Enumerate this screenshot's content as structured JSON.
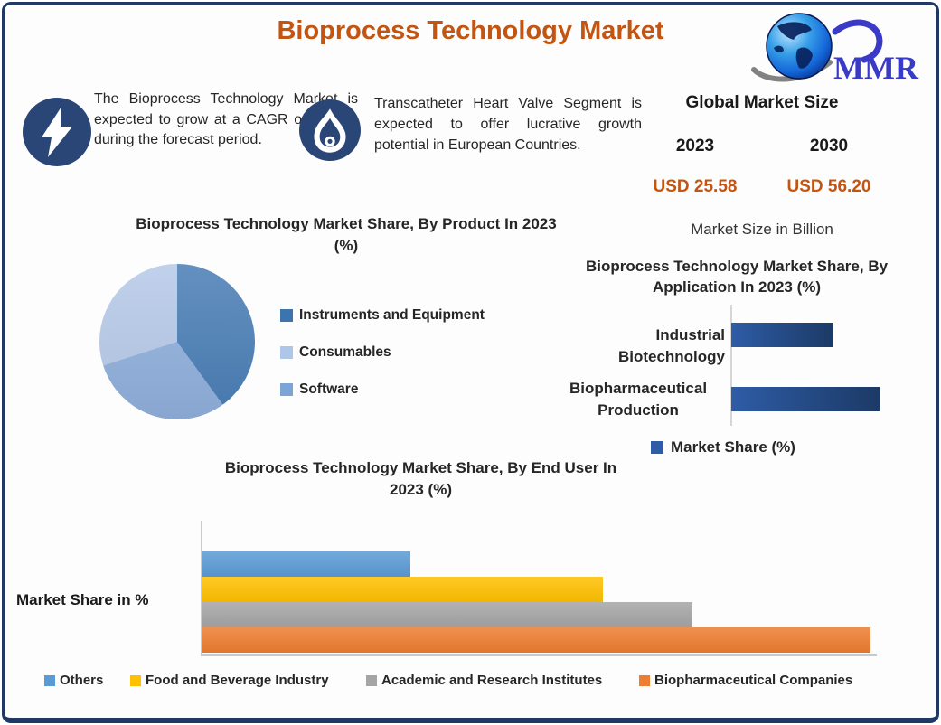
{
  "header": {
    "title": "Bioprocess Technology Market",
    "logo_text": "MMR"
  },
  "highlights": [
    {
      "icon": "lightning-icon",
      "text": "The Bioprocess Technology Market is expected to grow at a CAGR of 11.9 % during the forecast period."
    },
    {
      "icon": "flame-icon",
      "text": "Transcatheter Heart Valve Segment is expected to offer lucrative growth potential in European Countries."
    }
  ],
  "market_size": {
    "heading": "Global Market Size",
    "years": [
      "2023",
      "2030"
    ],
    "values": [
      "USD 25.58",
      "USD 56.20"
    ],
    "note": "Market Size in Billion"
  },
  "colors": {
    "accent_orange": "#C25511",
    "border_navy": "#1F3864",
    "icon_navy": "#2A4677",
    "app_bar_gradient": [
      "#2E5CA6",
      "#1C3A66"
    ]
  },
  "chart_data": [
    {
      "type": "pie",
      "title": "Bioprocess Technology Market Share, By Product In 2023 (%)",
      "categories": [
        "Instruments and Equipment",
        "Consumables",
        "Software"
      ],
      "values": [
        40,
        30,
        30
      ],
      "slice_colors": [
        "#4A7EB5",
        "#8FAFDB",
        "#B6C9E8"
      ],
      "legend_colors": [
        "#3D74AE",
        "#AEC7E8",
        "#7CA5D7"
      ],
      "legend_position": "right"
    },
    {
      "type": "bar",
      "orientation": "horizontal",
      "title": "Bioprocess Technology Market Share, By Application In 2023 (%)",
      "categories": [
        "Industrial Biotechnology",
        "Biopharmaceutical Production"
      ],
      "values": [
        41,
        60
      ],
      "xlim": [
        0,
        66
      ],
      "legend": [
        "Market Share (%)"
      ],
      "legend_color": "#2E5CA6",
      "legend_position": "bottom",
      "grid": false
    },
    {
      "type": "bar",
      "orientation": "horizontal",
      "title": "Bioprocess Technology Market Share, By End User In 2023 (%)",
      "ylabel": "Market Share in %",
      "categories": [
        "Others",
        "Food and Beverage Industry",
        "Academic and Research Institutes",
        "Biopharmaceutical Companies"
      ],
      "values": [
        14,
        27,
        33,
        45
      ],
      "xlim": [
        0,
        46
      ],
      "bar_colors": [
        "#5B9BD5",
        "#FFC000",
        "#A5A5A5",
        "#ED7D31"
      ],
      "legend_position": "bottom",
      "grid": false
    }
  ]
}
